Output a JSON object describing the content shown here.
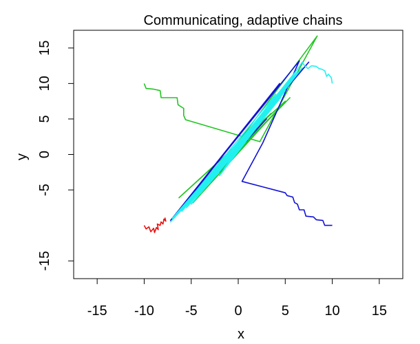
{
  "chart_data": {
    "type": "line",
    "title": "Communicating, adaptive chains",
    "xlabel": "x",
    "ylabel": "y",
    "xlim": [
      -17.5,
      17.5
    ],
    "ylim": [
      -17.5,
      17.5
    ],
    "xticks": [
      -15,
      -10,
      -5,
      0,
      5,
      10,
      15
    ],
    "yticks": [
      -15,
      -5,
      0,
      5,
      10,
      15
    ],
    "xtick_labels": [
      "-15",
      "-10",
      "-5",
      "0",
      "5",
      "10",
      "15"
    ],
    "ytick_labels": [
      "-15",
      "-5",
      "0",
      "5",
      "10",
      "15"
    ],
    "grid": false,
    "series": [
      {
        "name": "green chain",
        "color": "#22c422",
        "points": [
          [
            -10,
            10
          ],
          [
            -9.8,
            9.3
          ],
          [
            -9,
            9.2
          ],
          [
            -8.3,
            9
          ],
          [
            -8.2,
            8
          ],
          [
            -6.5,
            8
          ],
          [
            -6.4,
            7
          ],
          [
            -5.8,
            6.5
          ],
          [
            -5.8,
            5.5
          ],
          [
            -5.6,
            4.9
          ],
          [
            2.3,
            1.8
          ],
          [
            8.4,
            16.7
          ],
          [
            -4.8,
            -6.8
          ],
          [
            5,
            7.5
          ],
          [
            -6.3,
            -6.1
          ],
          [
            3.5,
            5.8
          ],
          [
            -2,
            -2.5
          ],
          [
            4,
            6
          ],
          [
            -5,
            -6.2
          ],
          [
            2,
            4
          ],
          [
            -3,
            -3.5
          ],
          [
            5.5,
            8
          ],
          [
            -4,
            -5
          ],
          [
            1,
            2
          ],
          [
            -1,
            -1
          ]
        ]
      },
      {
        "name": "blue chain",
        "color": "#1010d8",
        "points": [
          [
            10,
            -10
          ],
          [
            9.2,
            -10
          ],
          [
            9,
            -9.3
          ],
          [
            8.3,
            -9.2
          ],
          [
            8,
            -8.8
          ],
          [
            7.2,
            -8.7
          ],
          [
            7,
            -7.8
          ],
          [
            6.5,
            -7.8
          ],
          [
            6.3,
            -7
          ],
          [
            6,
            -6.8
          ],
          [
            5.8,
            -6
          ],
          [
            5.2,
            -5.8
          ],
          [
            5,
            -5.4
          ],
          [
            0.4,
            -3.8
          ],
          [
            2.6,
            1.6
          ],
          [
            6.5,
            13.2
          ],
          [
            -7.2,
            -9.3
          ],
          [
            4.4,
            10
          ],
          [
            -6,
            -7.5
          ],
          [
            7.5,
            13
          ],
          [
            -4,
            -5
          ],
          [
            3,
            5
          ],
          [
            -5,
            -6
          ],
          [
            6,
            11
          ],
          [
            -2,
            -2
          ],
          [
            2,
            4
          ],
          [
            -3,
            -4
          ],
          [
            5,
            9
          ],
          [
            0,
            1
          ],
          [
            1,
            2
          ]
        ]
      },
      {
        "name": "red chain",
        "color": "#e81010",
        "points": [
          [
            -10,
            -10
          ],
          [
            -9.8,
            -10.5
          ],
          [
            -9.5,
            -10.2
          ],
          [
            -9.3,
            -10.9
          ],
          [
            -9,
            -10.4
          ],
          [
            -8.9,
            -11
          ],
          [
            -8.7,
            -10.3
          ],
          [
            -8.5,
            -10.6
          ],
          [
            -8.6,
            -9.8
          ],
          [
            -8.3,
            -10
          ],
          [
            -8.2,
            -9.5
          ],
          [
            -8,
            -9.8
          ],
          [
            -7.9,
            -9.1
          ],
          [
            -7.7,
            -9.4
          ],
          [
            -7.8,
            -8.9
          ]
        ]
      },
      {
        "name": "cyan chain",
        "color": "#22f0f0",
        "points": [
          [
            10,
            10
          ],
          [
            9.9,
            10.8
          ],
          [
            9.6,
            11.3
          ],
          [
            9.4,
            11
          ],
          [
            9.2,
            11.8
          ],
          [
            8.9,
            12
          ],
          [
            8.6,
            12.1
          ],
          [
            8.3,
            12.4
          ],
          [
            7.8,
            12.5
          ],
          [
            7.4,
            12.1
          ],
          [
            7,
            12.6
          ],
          [
            6.8,
            13
          ],
          [
            6.5,
            12.4
          ],
          [
            -2,
            -3
          ],
          [
            5,
            9
          ],
          [
            -6,
            -8
          ],
          [
            6.2,
            11.5
          ],
          [
            -4,
            -5.5
          ],
          [
            3,
            6
          ],
          [
            -7,
            -9
          ],
          [
            6.8,
            12.2
          ],
          [
            -1,
            -1
          ],
          [
            4.5,
            8
          ],
          [
            -5,
            -7
          ],
          [
            2,
            4
          ],
          [
            -3,
            -4
          ],
          [
            5.5,
            10
          ],
          [
            -6.5,
            -8.5
          ],
          [
            1,
            2.5
          ],
          [
            6,
            11
          ],
          [
            -2.5,
            -3
          ],
          [
            3.5,
            7
          ],
          [
            -4.5,
            -6
          ],
          [
            0.5,
            1.5
          ],
          [
            6.3,
            12
          ],
          [
            -5.5,
            -7.5
          ],
          [
            2.5,
            5
          ],
          [
            -1.5,
            -2
          ],
          [
            4,
            8.5
          ],
          [
            -7.2,
            -9.5
          ],
          [
            0,
            1
          ],
          [
            1.5,
            3
          ]
        ]
      }
    ]
  }
}
